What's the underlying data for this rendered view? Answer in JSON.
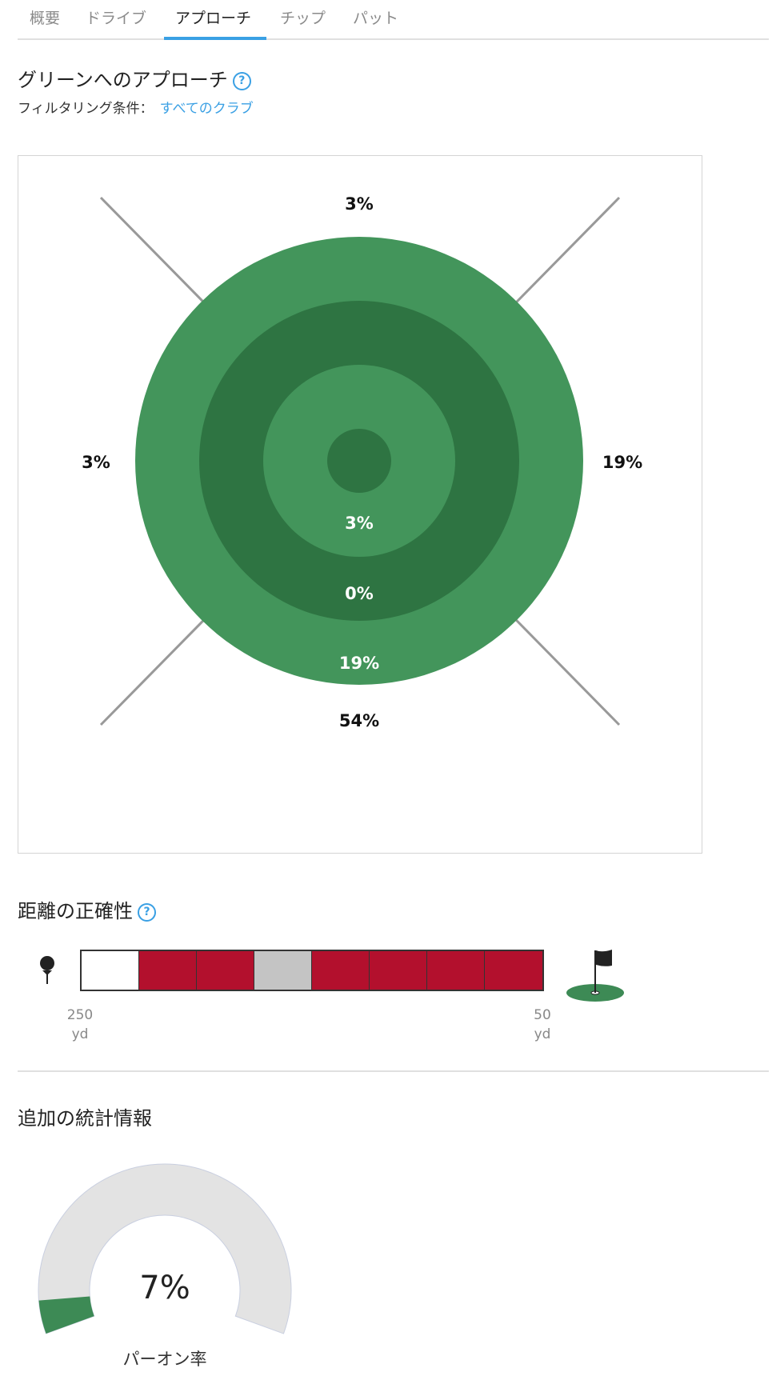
{
  "tabs": [
    {
      "label": "概要",
      "active": false
    },
    {
      "label": "ドライブ",
      "active": false
    },
    {
      "label": "アプローチ",
      "active": true
    },
    {
      "label": "チップ",
      "active": false
    },
    {
      "label": "パット",
      "active": false
    }
  ],
  "approach": {
    "title": "グリーンへのアプローチ",
    "help_icon": "question-circle-icon",
    "filter_label": "フィルタリング条件：",
    "filter_value": "すべてのクラブ",
    "target": {
      "long": "3%",
      "left": "3%",
      "right": "19%",
      "short": "54%",
      "ring_inner": "3%",
      "ring_middle": "0%",
      "ring_outer": "19%",
      "colors": {
        "light": "#43955b",
        "dark": "#2e7442",
        "divider": "#999999"
      }
    }
  },
  "distance": {
    "title": "距離の正確性",
    "help_icon": "question-circle-icon",
    "segments": [
      "none",
      "miss",
      "miss",
      "neutral",
      "miss",
      "miss",
      "miss",
      "miss"
    ],
    "colors": {
      "none": "#ffffff",
      "miss": "#b3102d",
      "neutral": "#c4c4c4"
    },
    "start_label": {
      "value": "250",
      "unit": "yd"
    },
    "end_label": {
      "value": "50",
      "unit": "yd"
    },
    "start_icon": "golf-tee-icon",
    "end_icon": "flag-green-icon"
  },
  "additional": {
    "title": "追加の統計情報",
    "gauge": {
      "value_text": "7%",
      "value": 7,
      "label": "パーオン率",
      "fill_color": "#3d8a55",
      "track_color": "#e3e3e3"
    }
  }
}
